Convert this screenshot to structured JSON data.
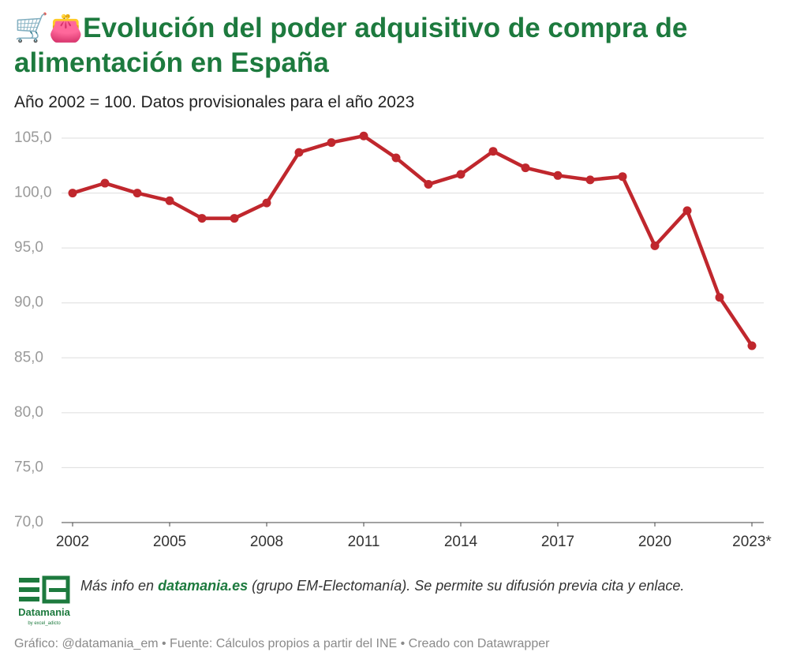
{
  "chart_data": {
    "type": "line",
    "title": "🛒👛Evolución del poder adquisitivo de compra de alimentación en España",
    "subtitle": "Año 2002 = 100. Datos provisionales para el año 2023",
    "x": [
      2002,
      2003,
      2004,
      2005,
      2006,
      2007,
      2008,
      2009,
      2010,
      2011,
      2012,
      2013,
      2014,
      2015,
      2016,
      2017,
      2018,
      2019,
      2020,
      2021,
      2022,
      2023
    ],
    "values": [
      100.0,
      100.9,
      100.0,
      99.3,
      97.7,
      97.7,
      99.1,
      103.7,
      104.6,
      105.2,
      103.2,
      100.8,
      101.7,
      103.8,
      102.3,
      101.6,
      101.2,
      101.5,
      95.2,
      98.4,
      90.5,
      86.1
    ],
    "color": "#c0272d",
    "xlim": [
      2002,
      2023
    ],
    "xticks": [
      2002,
      2005,
      2008,
      2011,
      2014,
      2017,
      2020,
      {
        "value": 2023,
        "label": "2023*"
      }
    ],
    "ylim": [
      70,
      105
    ],
    "yticks": [
      {
        "value": 70,
        "label": "70,0"
      },
      {
        "value": 75,
        "label": "75,0"
      },
      {
        "value": 80,
        "label": "80,0"
      },
      {
        "value": 85,
        "label": "85,0"
      },
      {
        "value": 90,
        "label": "90,0"
      },
      {
        "value": 95,
        "label": "95,0"
      },
      {
        "value": 100,
        "label": "100,0"
      },
      {
        "value": 105,
        "label": "105,0"
      }
    ],
    "grid": true,
    "note": {
      "before": "Más info en ",
      "link": "datamania.es",
      "after": " (grupo EM-Electomanía). Se permite su difusión previa cita y enlace."
    },
    "logo": {
      "name": "Datamania",
      "byline": "by excel_adicto"
    },
    "footer": "Gráfico: @datamania_em • Fuente: Cálculos propios a partir del INE • Creado con Datawrapper"
  }
}
